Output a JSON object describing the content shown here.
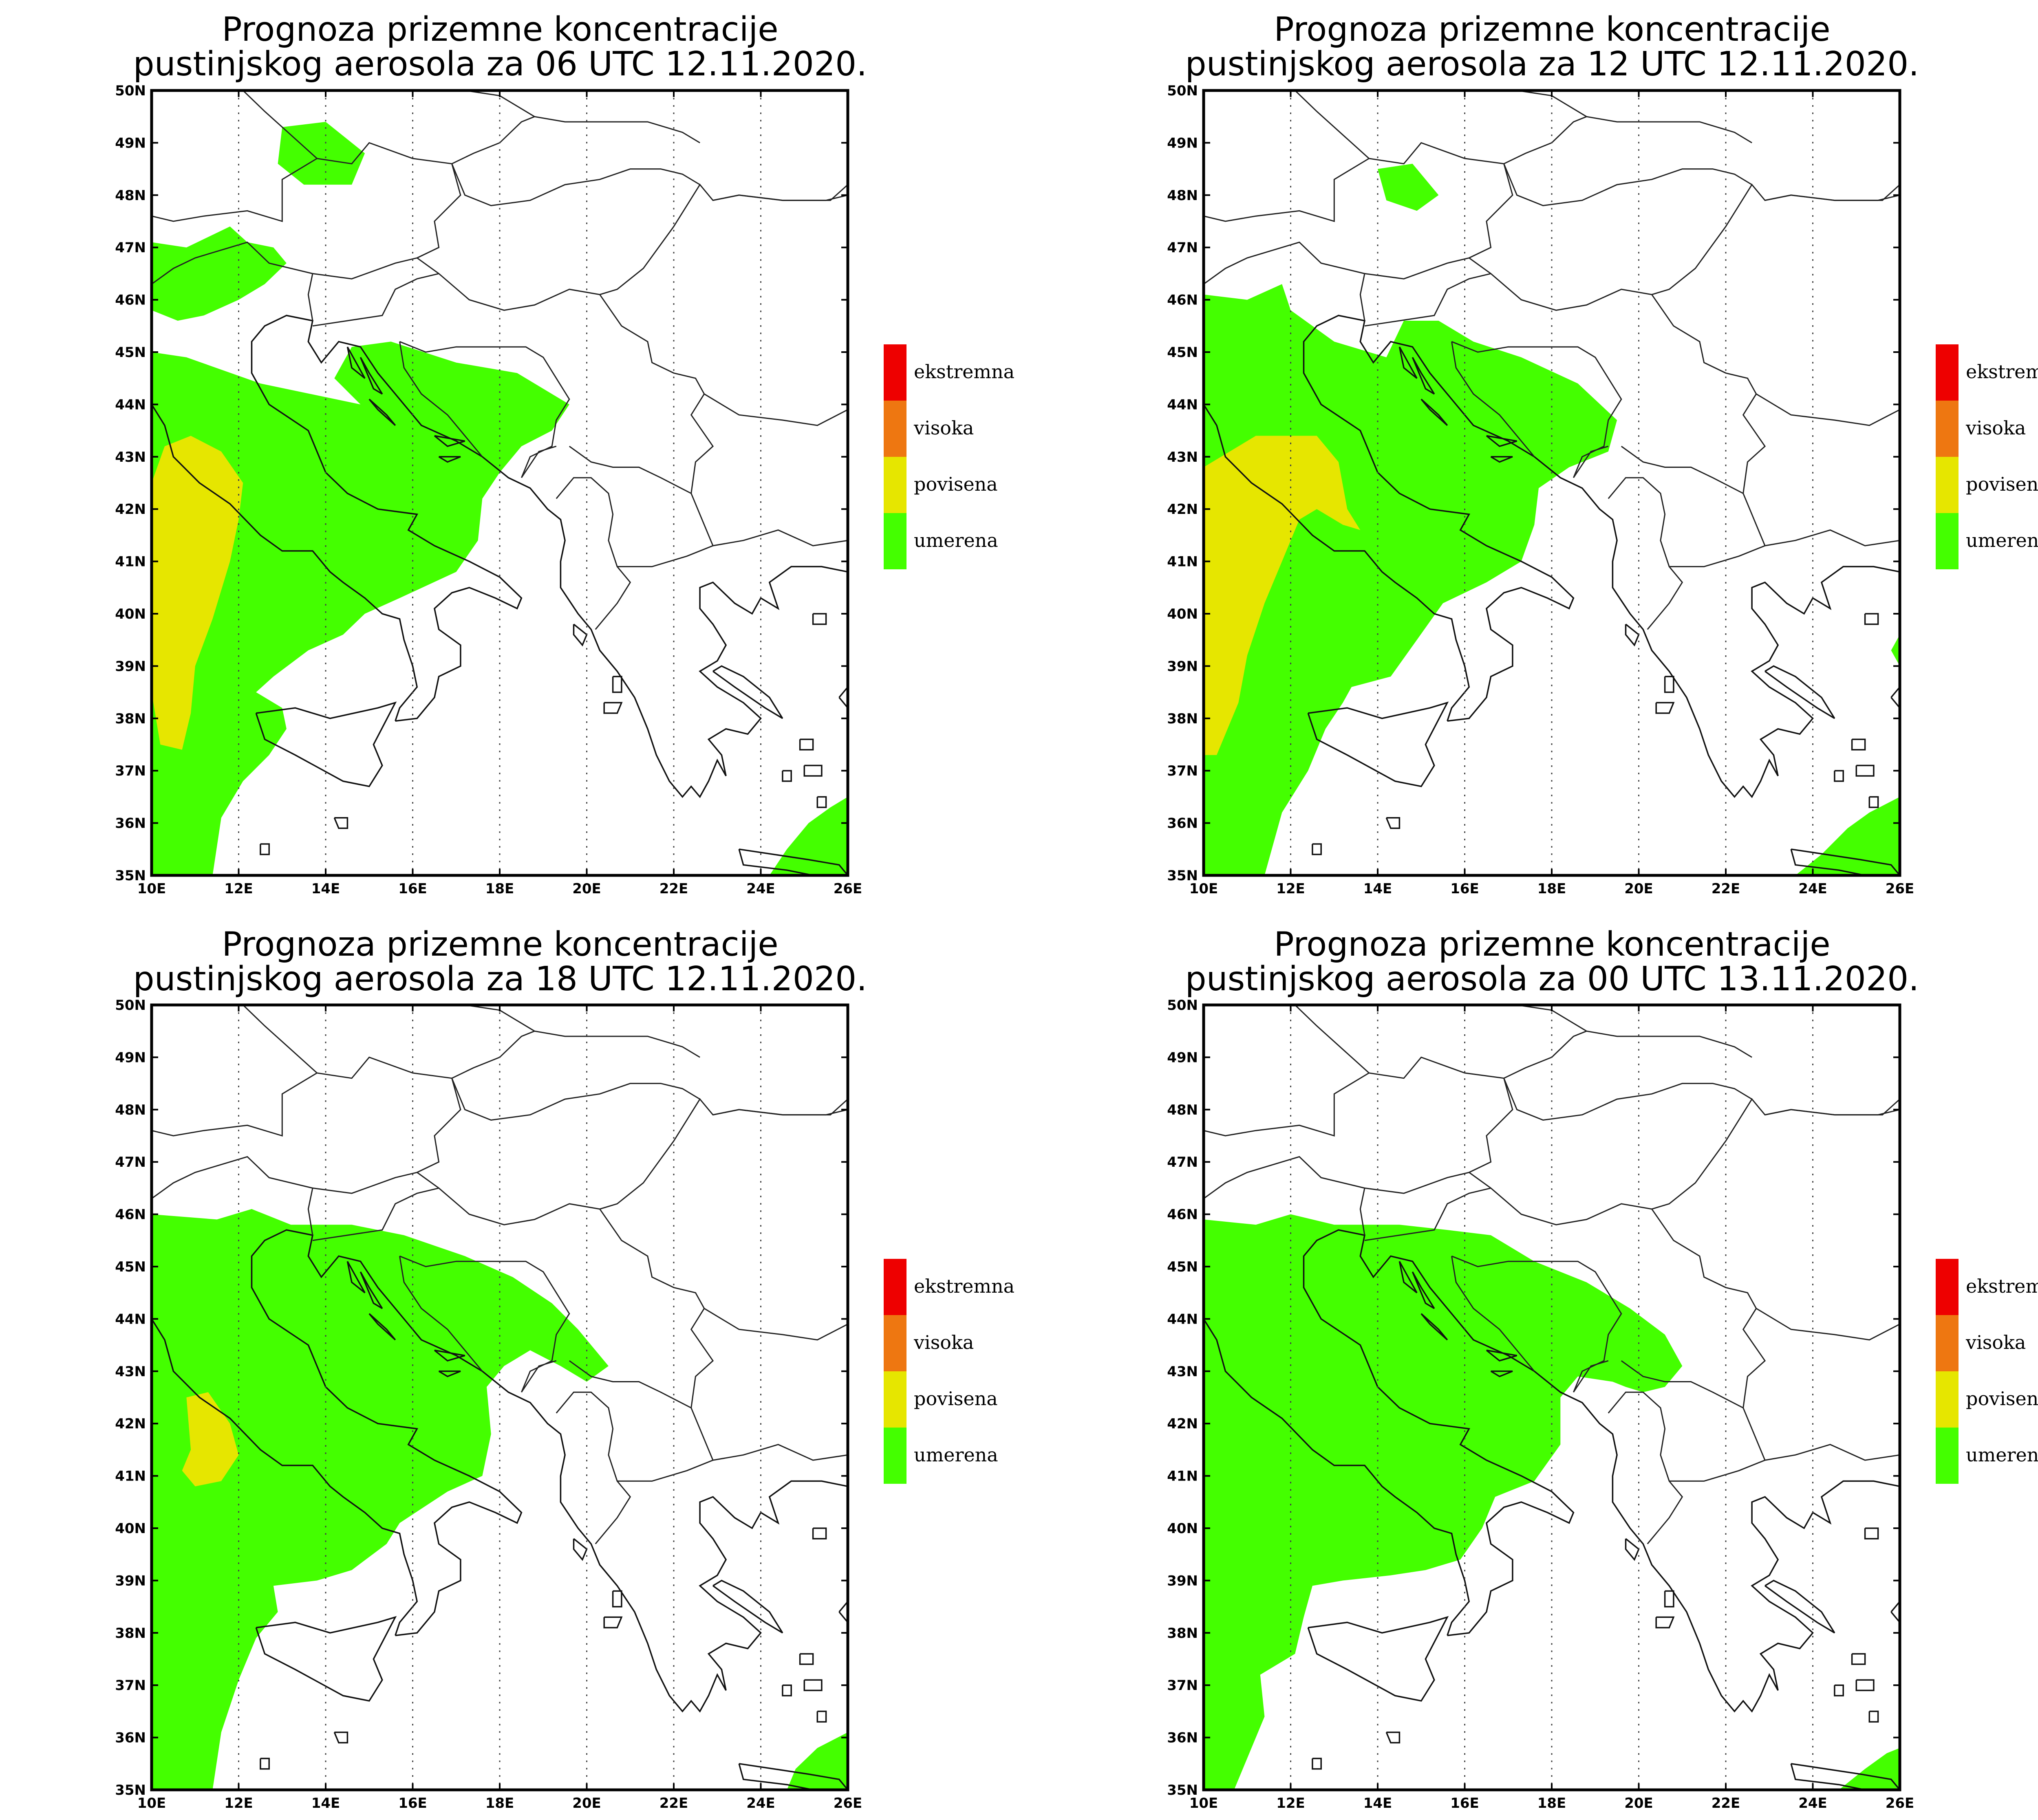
{
  "legend": {
    "categories": [
      {
        "label": "ekstremna",
        "color": "#ee0000"
      },
      {
        "label": "visoka",
        "color": "#ee7711"
      },
      {
        "label": "povisena",
        "color": "#e6e600"
      },
      {
        "label": "umerena",
        "color": "#44ff00"
      }
    ]
  },
  "axes": {
    "lon_ticks": [
      "10E",
      "12E",
      "14E",
      "16E",
      "18E",
      "20E",
      "22E",
      "24E",
      "26E"
    ],
    "lat_ticks": [
      "35N",
      "36N",
      "37N",
      "38N",
      "39N",
      "40N",
      "41N",
      "42N",
      "43N",
      "44N",
      "45N",
      "46N",
      "47N",
      "48N",
      "49N",
      "50N"
    ],
    "lon_range": [
      10,
      26
    ],
    "lat_range": [
      35,
      50
    ]
  },
  "panels": [
    {
      "title_line1": "Prognoza prizemne koncentracije",
      "title_line2": "pustinjskog aerosola za 06 UTC 12.11.2020.",
      "regions": [
        {
          "level": "umerena",
          "coords": [
            [
              13.0,
              49.3
            ],
            [
              14.0,
              49.4
            ],
            [
              14.9,
              48.8
            ],
            [
              14.6,
              48.2
            ],
            [
              13.5,
              48.2
            ],
            [
              12.9,
              48.6
            ]
          ]
        },
        {
          "level": "umerena",
          "coords": [
            [
              10,
              47.1
            ],
            [
              10.8,
              47.0
            ],
            [
              11.8,
              47.4
            ],
            [
              12.2,
              47.1
            ],
            [
              12.8,
              47.0
            ],
            [
              13.1,
              46.7
            ],
            [
              12.6,
              46.3
            ],
            [
              12.0,
              46.0
            ],
            [
              11.2,
              45.7
            ],
            [
              10.6,
              45.6
            ],
            [
              10,
              45.8
            ]
          ]
        },
        {
          "level": "umerena",
          "coords": [
            [
              10,
              45.0
            ],
            [
              10.8,
              44.9
            ],
            [
              12.5,
              44.4
            ],
            [
              14.8,
              44.0
            ],
            [
              14.2,
              44.5
            ],
            [
              14.6,
              45.1
            ],
            [
              15.5,
              45.2
            ],
            [
              17.0,
              44.8
            ],
            [
              18.4,
              44.6
            ],
            [
              19.6,
              44.0
            ],
            [
              19.2,
              43.5
            ],
            [
              18.5,
              43.2
            ],
            [
              18.0,
              42.7
            ],
            [
              17.6,
              42.2
            ],
            [
              17.5,
              41.4
            ],
            [
              17.0,
              40.8
            ],
            [
              15.7,
              40.3
            ],
            [
              14.9,
              40.0
            ],
            [
              14.4,
              39.6
            ],
            [
              13.6,
              39.3
            ],
            [
              12.8,
              38.8
            ],
            [
              12.4,
              38.5
            ],
            [
              13.0,
              38.2
            ],
            [
              13.1,
              37.8
            ],
            [
              12.7,
              37.3
            ],
            [
              12.1,
              36.8
            ],
            [
              11.6,
              36.1
            ],
            [
              11.4,
              35.0
            ],
            [
              10,
              35.0
            ]
          ]
        },
        {
          "level": "povisena",
          "coords": [
            [
              10.3,
              43.2
            ],
            [
              10.9,
              43.4
            ],
            [
              11.6,
              43.1
            ],
            [
              12.1,
              42.5
            ],
            [
              12.0,
              41.8
            ],
            [
              11.8,
              41.0
            ],
            [
              11.4,
              39.9
            ],
            [
              11.0,
              39.0
            ],
            [
              10.9,
              38.1
            ],
            [
              10.7,
              37.4
            ],
            [
              10.2,
              37.5
            ],
            [
              10.0,
              38.5
            ],
            [
              10,
              42.5
            ]
          ]
        },
        {
          "level": "umerena",
          "coords": [
            [
              26,
              35
            ],
            [
              26,
              36.5
            ],
            [
              25.6,
              36.3
            ],
            [
              25.1,
              36.0
            ],
            [
              24.6,
              35.5
            ],
            [
              24.2,
              35.0
            ]
          ]
        }
      ]
    },
    {
      "title_line1": "Prognoza prizemne koncentracije",
      "title_line2": "pustinjskog aerosola za 12 UTC 12.11.2020.",
      "regions": [
        {
          "level": "umerena",
          "coords": [
            [
              14.0,
              48.5
            ],
            [
              14.8,
              48.6
            ],
            [
              15.4,
              48.0
            ],
            [
              14.9,
              47.7
            ],
            [
              14.2,
              47.9
            ]
          ]
        },
        {
          "level": "umerena",
          "coords": [
            [
              10,
              46.1
            ],
            [
              11.0,
              46.0
            ],
            [
              11.8,
              46.3
            ],
            [
              12.0,
              45.8
            ],
            [
              13.0,
              45.2
            ],
            [
              14.2,
              44.9
            ],
            [
              14.6,
              45.6
            ],
            [
              15.4,
              45.6
            ],
            [
              16.2,
              45.2
            ],
            [
              17.3,
              44.9
            ],
            [
              18.6,
              44.4
            ],
            [
              19.5,
              43.7
            ],
            [
              19.3,
              43.1
            ],
            [
              18.4,
              42.8
            ],
            [
              17.7,
              42.4
            ],
            [
              17.6,
              41.7
            ],
            [
              17.3,
              41.0
            ],
            [
              16.5,
              40.6
            ],
            [
              15.5,
              40.2
            ],
            [
              14.9,
              39.5
            ],
            [
              14.3,
              38.8
            ],
            [
              13.4,
              38.6
            ],
            [
              13.2,
              38.3
            ],
            [
              12.8,
              37.8
            ],
            [
              12.4,
              37.0
            ],
            [
              11.8,
              36.2
            ],
            [
              11.4,
              35.0
            ],
            [
              10,
              35.0
            ]
          ]
        },
        {
          "level": "povisena",
          "coords": [
            [
              10.2,
              42.9
            ],
            [
              11.2,
              43.4
            ],
            [
              12.6,
              43.4
            ],
            [
              13.1,
              42.9
            ],
            [
              13.3,
              42.0
            ],
            [
              13.6,
              41.6
            ],
            [
              13.2,
              41.7
            ],
            [
              12.6,
              42.0
            ],
            [
              12.2,
              41.8
            ],
            [
              11.8,
              41.0
            ],
            [
              11.4,
              40.2
            ],
            [
              11.0,
              39.2
            ],
            [
              10.8,
              38.3
            ],
            [
              10.3,
              37.3
            ],
            [
              10.0,
              37.3
            ],
            [
              10,
              42.8
            ]
          ]
        },
        {
          "level": "umerena",
          "coords": [
            [
              26,
              35
            ],
            [
              26,
              36.5
            ],
            [
              25.3,
              36.2
            ],
            [
              24.8,
              35.9
            ],
            [
              24.2,
              35.4
            ],
            [
              23.6,
              35.0
            ]
          ]
        },
        {
          "level": "umerena",
          "coords": [
            [
              26,
              39.6
            ],
            [
              26,
              39.0
            ],
            [
              25.8,
              39.3
            ]
          ]
        }
      ]
    },
    {
      "title_line1": "Prognoza prizemne koncentracije",
      "title_line2": "pustinjskog aerosola za 18 UTC 12.11.2020.",
      "regions": [
        {
          "level": "umerena",
          "coords": [
            [
              10,
              46.0
            ],
            [
              11.5,
              45.9
            ],
            [
              12.3,
              46.1
            ],
            [
              13.2,
              45.8
            ],
            [
              14.6,
              45.8
            ],
            [
              15.8,
              45.6
            ],
            [
              17.2,
              45.2
            ],
            [
              18.3,
              44.8
            ],
            [
              19.2,
              44.3
            ],
            [
              19.8,
              43.8
            ],
            [
              20.5,
              43.1
            ],
            [
              20.0,
              42.8
            ],
            [
              19.4,
              43.1
            ],
            [
              18.7,
              43.4
            ],
            [
              18.1,
              43.1
            ],
            [
              17.7,
              42.7
            ],
            [
              17.8,
              41.8
            ],
            [
              17.6,
              41.0
            ],
            [
              16.8,
              40.7
            ],
            [
              15.7,
              40.1
            ],
            [
              15.4,
              39.7
            ],
            [
              14.6,
              39.2
            ],
            [
              13.8,
              39.0
            ],
            [
              12.8,
              38.9
            ],
            [
              12.9,
              38.4
            ],
            [
              12.4,
              37.9
            ],
            [
              12.0,
              37.1
            ],
            [
              11.6,
              36.1
            ],
            [
              11.4,
              35.0
            ],
            [
              10,
              35.0
            ]
          ]
        },
        {
          "level": "povisena",
          "coords": [
            [
              10.9,
              41.5
            ],
            [
              10.7,
              41.1
            ],
            [
              11.0,
              40.8
            ],
            [
              11.6,
              40.9
            ],
            [
              12.0,
              41.4
            ],
            [
              11.8,
              42.0
            ],
            [
              11.3,
              42.6
            ],
            [
              10.8,
              42.5
            ]
          ]
        },
        {
          "level": "umerena",
          "coords": [
            [
              26,
              35
            ],
            [
              26,
              36.1
            ],
            [
              25.3,
              35.8
            ],
            [
              24.8,
              35.4
            ],
            [
              24.6,
              35.0
            ]
          ]
        }
      ]
    },
    {
      "title_line1": "Prognoza prizemne koncentracije",
      "title_line2": "pustinjskog aerosola za 00 UTC 13.11.2020.",
      "regions": [
        {
          "level": "umerena",
          "coords": [
            [
              10,
              45.9
            ],
            [
              11.2,
              45.8
            ],
            [
              12.0,
              46.0
            ],
            [
              13.0,
              45.8
            ],
            [
              14.5,
              45.8
            ],
            [
              15.6,
              45.7
            ],
            [
              16.6,
              45.6
            ],
            [
              17.6,
              45.1
            ],
            [
              18.8,
              44.7
            ],
            [
              19.8,
              44.2
            ],
            [
              20.6,
              43.7
            ],
            [
              21.0,
              43.1
            ],
            [
              20.6,
              42.7
            ],
            [
              20.1,
              42.6
            ],
            [
              19.7,
              42.7
            ],
            [
              19.4,
              42.8
            ],
            [
              18.6,
              42.9
            ],
            [
              18.2,
              42.5
            ],
            [
              18.2,
              41.6
            ],
            [
              17.6,
              40.9
            ],
            [
              16.7,
              40.6
            ],
            [
              16.4,
              40.0
            ],
            [
              15.9,
              39.4
            ],
            [
              15.1,
              39.2
            ],
            [
              14.3,
              39.1
            ],
            [
              13.2,
              39.0
            ],
            [
              12.5,
              38.9
            ],
            [
              12.3,
              38.3
            ],
            [
              12.1,
              37.6
            ],
            [
              11.3,
              37.2
            ],
            [
              11.4,
              36.4
            ],
            [
              11.1,
              35.8
            ],
            [
              10.7,
              35.0
            ],
            [
              10,
              35.0
            ]
          ]
        },
        {
          "level": "umerena",
          "coords": [
            [
              26,
              35
            ],
            [
              26,
              35.8
            ],
            [
              25.7,
              35.7
            ],
            [
              25.2,
              35.4
            ],
            [
              24.6,
              35.0
            ]
          ]
        }
      ]
    }
  ]
}
